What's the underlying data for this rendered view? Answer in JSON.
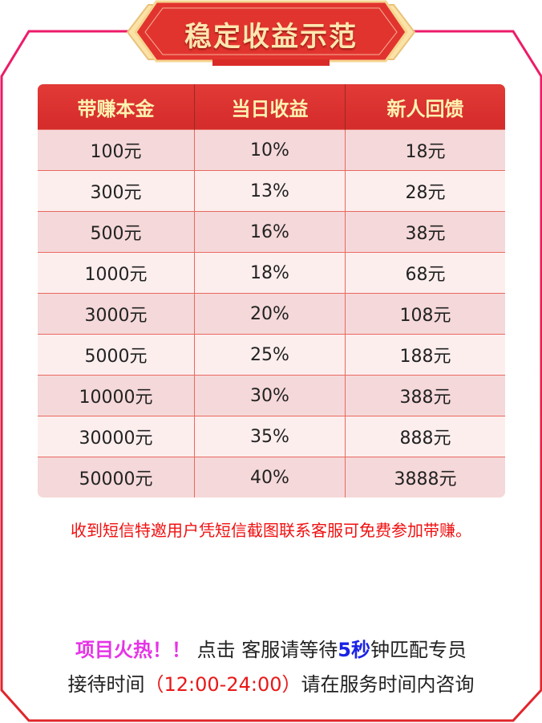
{
  "banner": {
    "title": "稳定收益示范"
  },
  "table": {
    "headers": [
      "带赚本金",
      "当日收益",
      "新人回馈"
    ],
    "rows": [
      [
        "100元",
        "10%",
        "18元"
      ],
      [
        "300元",
        "13%",
        "28元"
      ],
      [
        "500元",
        "16%",
        "38元"
      ],
      [
        "1000元",
        "18%",
        "68元"
      ],
      [
        "3000元",
        "20%",
        "108元"
      ],
      [
        "5000元",
        "25%",
        "188元"
      ],
      [
        "10000元",
        "30%",
        "388元"
      ],
      [
        "30000元",
        "35%",
        "888元"
      ],
      [
        "50000元",
        "40%",
        "3888元"
      ]
    ]
  },
  "note": "收到短信特邀用户凭短信截图联系客服可免费参加带赚。",
  "footer": {
    "hot": "项目火热！！",
    "line1_a": " 点击 客服请等待",
    "seconds": "5秒",
    "line1_b": "钟匹配专员",
    "line2_a": "接待时间",
    "hours": "（12:00-24:00）",
    "line2_b": "请在服务时间内咨询"
  },
  "colors": {
    "frame": "#e8185a",
    "header": "#d92f2f",
    "note": "#f01010",
    "hot": "#e633e6",
    "seconds": "#1a22e6"
  }
}
